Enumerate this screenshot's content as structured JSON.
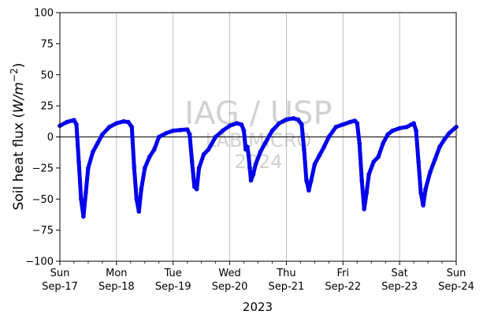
{
  "chart_data": {
    "type": "line",
    "title": "",
    "xlabel": "2023",
    "ylabel_prefix": "Soil heat flux (",
    "ylabel_unit_base": "W/m",
    "ylabel_unit_exp": "−2",
    "ylabel_suffix": ")",
    "ylim": [
      -100,
      100
    ],
    "yticks": [
      -100,
      -75,
      -50,
      -25,
      0,
      25,
      50,
      75,
      100
    ],
    "xlim": [
      "2023-09-17",
      "2023-09-24"
    ],
    "xticks": [
      {
        "date": "2023-09-17",
        "line1": "Sun",
        "line2": "Sep-17"
      },
      {
        "date": "2023-09-18",
        "line1": "Mon",
        "line2": "Sep-18"
      },
      {
        "date": "2023-09-19",
        "line1": "Tue",
        "line2": "Sep-19"
      },
      {
        "date": "2023-09-20",
        "line1": "Wed",
        "line2": "Sep-20"
      },
      {
        "date": "2023-09-21",
        "line1": "Thu",
        "line2": "Sep-21"
      },
      {
        "date": "2023-09-22",
        "line1": "Fri",
        "line2": "Sep-22"
      },
      {
        "date": "2023-09-23",
        "line1": "Sat",
        "line2": "Sep-23"
      },
      {
        "date": "2023-09-24",
        "line1": "Sun",
        "line2": "Sep-24"
      }
    ],
    "grid": {
      "vertical": true,
      "horizontal": false
    },
    "reference_line_y": 0,
    "watermark": [
      "IAG / USP",
      "LAB MICRO",
      "2024"
    ],
    "series": [
      {
        "color": "#0000ee",
        "points": [
          [
            "2023-09-17 00:00",
            9
          ],
          [
            "2023-09-17 03:00",
            12
          ],
          [
            "2023-09-17 06:00",
            13.5
          ],
          [
            "2023-09-17 07:00",
            10
          ],
          [
            "2023-09-17 08:00",
            -20
          ],
          [
            "2023-09-17 09:00",
            -50
          ],
          [
            "2023-09-17 10:00",
            -64
          ],
          [
            "2023-09-17 11:00",
            -45
          ],
          [
            "2023-09-17 12:00",
            -25
          ],
          [
            "2023-09-17 14:00",
            -12
          ],
          [
            "2023-09-17 16:00",
            -5
          ],
          [
            "2023-09-17 18:00",
            2
          ],
          [
            "2023-09-17 21:00",
            8
          ],
          [
            "2023-09-18 00:00",
            11
          ],
          [
            "2023-09-18 03:00",
            12.5
          ],
          [
            "2023-09-18 05:00",
            12
          ],
          [
            "2023-09-18 06:30",
            8
          ],
          [
            "2023-09-18 07:30",
            -25
          ],
          [
            "2023-09-18 08:30",
            -50
          ],
          [
            "2023-09-18 09:30",
            -60
          ],
          [
            "2023-09-18 10:30",
            -42
          ],
          [
            "2023-09-18 12:00",
            -25
          ],
          [
            "2023-09-18 14:00",
            -16
          ],
          [
            "2023-09-18 16:00",
            -10
          ],
          [
            "2023-09-18 18:00",
            0
          ],
          [
            "2023-09-18 21:00",
            3
          ],
          [
            "2023-09-19 00:00",
            5
          ],
          [
            "2023-09-19 03:00",
            5.5
          ],
          [
            "2023-09-19 06:00",
            6
          ],
          [
            "2023-09-19 07:00",
            2
          ],
          [
            "2023-09-19 08:00",
            -20
          ],
          [
            "2023-09-19 09:00",
            -40
          ],
          [
            "2023-09-19 10:00",
            -42
          ],
          [
            "2023-09-19 11:00",
            -25
          ],
          [
            "2023-09-19 13:00",
            -14
          ],
          [
            "2023-09-19 15:00",
            -10
          ],
          [
            "2023-09-19 18:00",
            0
          ],
          [
            "2023-09-19 21:00",
            5
          ],
          [
            "2023-09-20 00:00",
            9
          ],
          [
            "2023-09-20 03:00",
            11
          ],
          [
            "2023-09-20 05:00",
            10
          ],
          [
            "2023-09-20 06:00",
            5
          ],
          [
            "2023-09-20 06:45",
            -10
          ],
          [
            "2023-09-20 07:30",
            -8
          ],
          [
            "2023-09-20 08:00",
            -15
          ],
          [
            "2023-09-20 08:30",
            -25
          ],
          [
            "2023-09-20 09:00",
            -35
          ],
          [
            "2023-09-20 10:00",
            -30
          ],
          [
            "2023-09-20 11:00",
            -22
          ],
          [
            "2023-09-20 13:00",
            -12
          ],
          [
            "2023-09-20 15:00",
            -5
          ],
          [
            "2023-09-20 18:00",
            5
          ],
          [
            "2023-09-20 21:00",
            11
          ],
          [
            "2023-09-21 00:00",
            14
          ],
          [
            "2023-09-21 03:00",
            15
          ],
          [
            "2023-09-21 05:00",
            14
          ],
          [
            "2023-09-21 06:30",
            10
          ],
          [
            "2023-09-21 07:30",
            -10
          ],
          [
            "2023-09-21 08:30",
            -35
          ],
          [
            "2023-09-21 09:30",
            -43
          ],
          [
            "2023-09-21 10:30",
            -35
          ],
          [
            "2023-09-21 12:00",
            -22
          ],
          [
            "2023-09-21 14:00",
            -15
          ],
          [
            "2023-09-21 16:00",
            -8
          ],
          [
            "2023-09-21 18:00",
            0
          ],
          [
            "2023-09-21 21:00",
            8
          ],
          [
            "2023-09-22 00:00",
            10
          ],
          [
            "2023-09-22 03:00",
            12
          ],
          [
            "2023-09-22 05:00",
            13
          ],
          [
            "2023-09-22 06:00",
            11
          ],
          [
            "2023-09-22 07:00",
            -5
          ],
          [
            "2023-09-22 08:00",
            -35
          ],
          [
            "2023-09-22 09:00",
            -58
          ],
          [
            "2023-09-22 10:00",
            -45
          ],
          [
            "2023-09-22 11:00",
            -30
          ],
          [
            "2023-09-22 13:00",
            -20
          ],
          [
            "2023-09-22 15:00",
            -16
          ],
          [
            "2023-09-22 17:00",
            -5
          ],
          [
            "2023-09-22 19:00",
            2
          ],
          [
            "2023-09-22 21:00",
            5
          ],
          [
            "2023-09-23 00:00",
            7
          ],
          [
            "2023-09-23 03:00",
            8
          ],
          [
            "2023-09-23 05:00",
            10
          ],
          [
            "2023-09-23 06:00",
            11
          ],
          [
            "2023-09-23 07:00",
            5
          ],
          [
            "2023-09-23 08:00",
            -20
          ],
          [
            "2023-09-23 09:00",
            -45
          ],
          [
            "2023-09-23 10:00",
            -55
          ],
          [
            "2023-09-23 11:00",
            -42
          ],
          [
            "2023-09-23 13:00",
            -28
          ],
          [
            "2023-09-23 15:00",
            -18
          ],
          [
            "2023-09-23 17:00",
            -8
          ],
          [
            "2023-09-23 19:00",
            -2
          ],
          [
            "2023-09-23 21:00",
            3
          ],
          [
            "2023-09-24 00:00",
            8
          ]
        ]
      }
    ]
  }
}
